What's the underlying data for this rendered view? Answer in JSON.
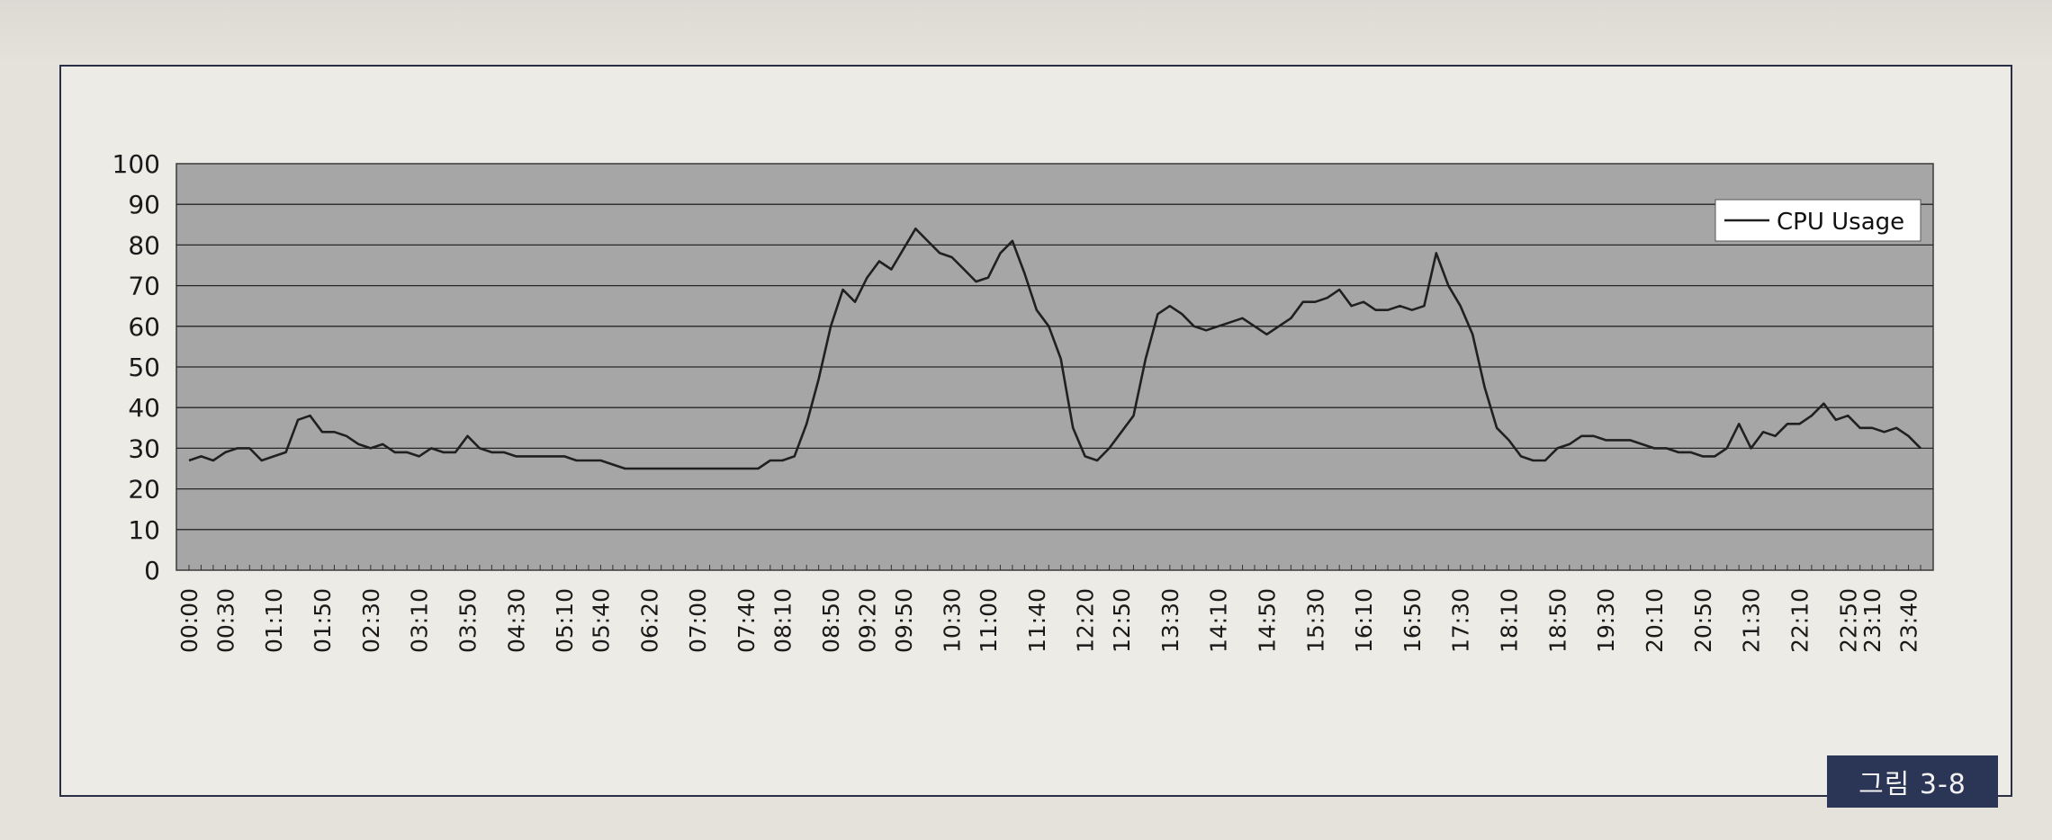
{
  "figure": {
    "caption": "그림 3-8"
  },
  "colors": {
    "plot_bg": "#a6a6a6",
    "line": "#202020",
    "grid": "#262626",
    "frame": "#2b2f46",
    "caption_bg": "#2b3556"
  },
  "chart_data": {
    "type": "line",
    "title": "",
    "xlabel": "",
    "ylabel": "",
    "ylim": [
      0,
      100
    ],
    "yticks": [
      0,
      10,
      20,
      30,
      40,
      50,
      60,
      70,
      80,
      90,
      100
    ],
    "grid": true,
    "legend": {
      "entries": [
        "CPU Usage"
      ],
      "placement": "top-right"
    },
    "x_tick_labels": [
      "00:00",
      "00:30",
      "01:10",
      "01:50",
      "02:30",
      "03:10",
      "03:50",
      "04:30",
      "05:10",
      "05:40",
      "06:20",
      "07:00",
      "07:40",
      "08:10",
      "08:50",
      "09:20",
      "09:50",
      "10:30",
      "11:00",
      "11:40",
      "12:20",
      "12:50",
      "13:30",
      "14:10",
      "14:50",
      "15:30",
      "16:10",
      "16:50",
      "17:30",
      "18:10",
      "18:50",
      "19:30",
      "20:10",
      "20:50",
      "21:30",
      "22:10",
      "22:50",
      "23:10",
      "23:40"
    ],
    "series": [
      {
        "name": "CPU Usage",
        "x": [
          "00:00",
          "00:10",
          "00:20",
          "00:30",
          "00:40",
          "00:50",
          "01:00",
          "01:10",
          "01:20",
          "01:30",
          "01:40",
          "01:50",
          "02:00",
          "02:10",
          "02:20",
          "02:30",
          "02:40",
          "02:50",
          "03:00",
          "03:10",
          "03:20",
          "03:30",
          "03:40",
          "03:50",
          "04:00",
          "04:10",
          "04:20",
          "04:30",
          "04:40",
          "04:50",
          "05:00",
          "05:10",
          "05:20",
          "05:30",
          "05:40",
          "05:50",
          "06:00",
          "06:10",
          "06:20",
          "06:30",
          "06:40",
          "06:50",
          "07:00",
          "07:10",
          "07:20",
          "07:30",
          "07:40",
          "07:50",
          "08:00",
          "08:10",
          "08:20",
          "08:30",
          "08:40",
          "08:50",
          "09:00",
          "09:10",
          "09:20",
          "09:30",
          "09:40",
          "09:50",
          "10:00",
          "10:10",
          "10:20",
          "10:30",
          "10:40",
          "10:50",
          "11:00",
          "11:10",
          "11:20",
          "11:30",
          "11:40",
          "11:50",
          "12:00",
          "12:10",
          "12:20",
          "12:30",
          "12:40",
          "12:50",
          "13:00",
          "13:10",
          "13:20",
          "13:30",
          "13:40",
          "13:50",
          "14:00",
          "14:10",
          "14:20",
          "14:30",
          "14:40",
          "14:50",
          "15:00",
          "15:10",
          "15:20",
          "15:30",
          "15:40",
          "15:50",
          "16:00",
          "16:10",
          "16:20",
          "16:30",
          "16:40",
          "16:50",
          "17:00",
          "17:10",
          "17:20",
          "17:30",
          "17:40",
          "17:50",
          "18:00",
          "18:10",
          "18:20",
          "18:30",
          "18:40",
          "18:50",
          "19:00",
          "19:10",
          "19:20",
          "19:30",
          "19:40",
          "19:50",
          "20:00",
          "20:10",
          "20:20",
          "20:30",
          "20:40",
          "20:50",
          "21:00",
          "21:10",
          "21:20",
          "21:30",
          "21:40",
          "21:50",
          "22:00",
          "22:10",
          "22:20",
          "22:30",
          "22:40",
          "22:50",
          "23:00",
          "23:10",
          "23:20",
          "23:30",
          "23:40",
          "23:50"
        ],
        "values": [
          27,
          28,
          27,
          29,
          30,
          30,
          27,
          28,
          29,
          37,
          38,
          34,
          34,
          33,
          31,
          30,
          31,
          29,
          29,
          28,
          30,
          29,
          29,
          33,
          30,
          29,
          29,
          28,
          28,
          28,
          28,
          28,
          27,
          27,
          27,
          26,
          25,
          25,
          25,
          25,
          25,
          25,
          25,
          25,
          25,
          25,
          25,
          25,
          27,
          27,
          28,
          36,
          47,
          60,
          69,
          66,
          72,
          76,
          74,
          79,
          84,
          81,
          78,
          77,
          74,
          71,
          72,
          78,
          81,
          73,
          64,
          60,
          52,
          35,
          28,
          27,
          30,
          34,
          38,
          52,
          63,
          65,
          63,
          60,
          59,
          60,
          61,
          62,
          60,
          58,
          60,
          62,
          66,
          66,
          67,
          69,
          65,
          66,
          64,
          64,
          65,
          64,
          65,
          78,
          70,
          65,
          58,
          45,
          35,
          32,
          28,
          27,
          27,
          30,
          31,
          33,
          33,
          32,
          32,
          32,
          31,
          30,
          30,
          29,
          29,
          28,
          28,
          30,
          36,
          30,
          34,
          33,
          36,
          36,
          38,
          41,
          37,
          38,
          35,
          35,
          34,
          35,
          33,
          30
        ]
      }
    ]
  }
}
